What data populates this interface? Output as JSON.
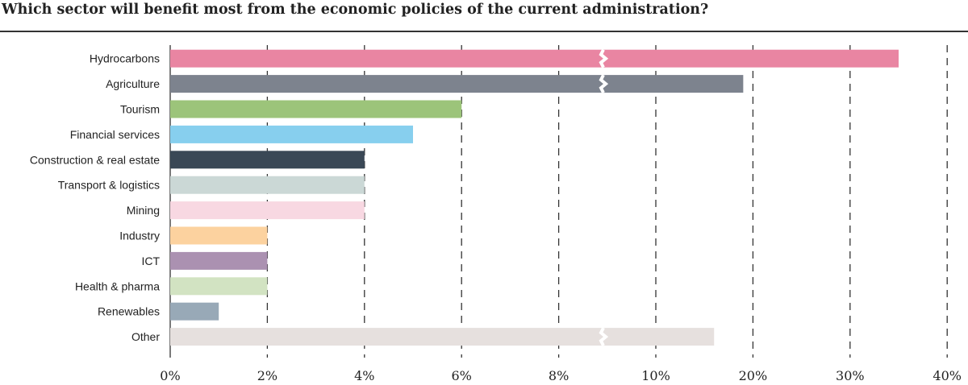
{
  "chart_data": {
    "type": "bar",
    "orientation": "horizontal",
    "title": "Which sector will benefit most from the economic policies of the current administration?",
    "xlabel": "",
    "ylabel": "",
    "categories": [
      "Hydrocarbons",
      "Agriculture",
      "Tourism",
      "Financial services",
      "Construction & real estate",
      "Transport & logistics",
      "Mining",
      "Industry",
      "ICT",
      "Health & pharma",
      "Renewables",
      "Other"
    ],
    "values": [
      35,
      19,
      6,
      5,
      4,
      4,
      4,
      2,
      2,
      2,
      1,
      16
    ],
    "colors": [
      "#e985a2",
      "#7d838e",
      "#9cc47a",
      "#87cfee",
      "#3a4856",
      "#cbd8d6",
      "#f8d8e2",
      "#fcd29f",
      "#ab91b1",
      "#d2e3c2",
      "#98a9b7",
      "#e6e0de"
    ],
    "axis_breaks": [
      true,
      true,
      false,
      false,
      false,
      false,
      false,
      false,
      false,
      false,
      false,
      true
    ],
    "ticks": [
      0,
      2,
      4,
      6,
      8,
      10,
      20,
      30,
      40
    ],
    "tick_labels": [
      "0%",
      "2%",
      "4%",
      "6%",
      "8%",
      "10%",
      "20%",
      "30%",
      "40%"
    ],
    "xlim": [
      0,
      40
    ],
    "grid": "vertical dashed"
  }
}
